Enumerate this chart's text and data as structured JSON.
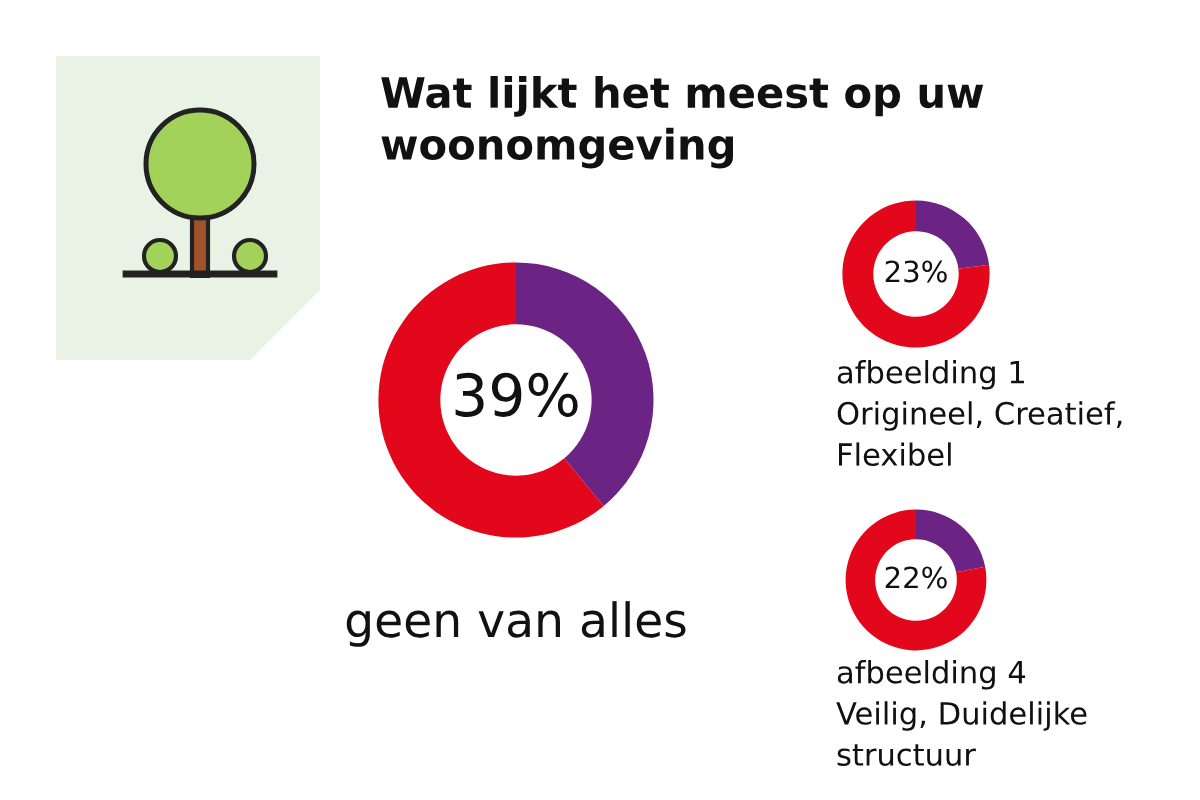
{
  "chart_data": [
    {
      "type": "donut",
      "title": "Wat lijkt het meest op uw\nwoonomgeving",
      "categories": [
        null,
        null
      ],
      "values": [
        39,
        61
      ],
      "colors": [
        "#6b2384",
        "#e2071b"
      ],
      "value_labels": [
        "39%",
        null
      ],
      "annotations": [
        "geen van alles"
      ]
    },
    {
      "type": "donut",
      "categories": [
        null,
        null
      ],
      "values": [
        23,
        77
      ],
      "colors": [
        "#6b2384",
        "#e2071b"
      ],
      "value_labels": [
        "23%",
        null
      ],
      "annotations": [
        "afbeelding 1\nOrigineel, Creatief,\nFlexibel"
      ]
    },
    {
      "type": "donut",
      "categories": [
        null,
        null
      ],
      "values": [
        22,
        78
      ],
      "colors": [
        "#6b2384",
        "#e2071b"
      ],
      "value_labels": [
        "22%",
        null
      ],
      "annotations": [
        "afbeelding 4\nVeilig, Duidelijke\nstructuur"
      ]
    }
  ]
}
